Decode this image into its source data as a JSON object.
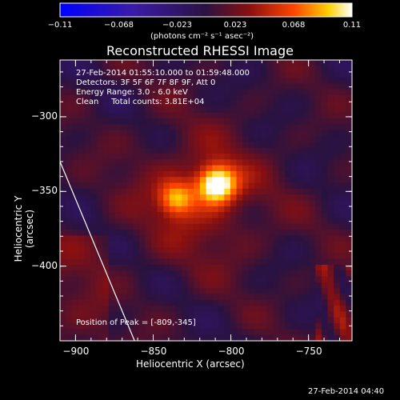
{
  "chart_data": {
    "type": "heatmap",
    "title": "Reconstructed RHESSI Image",
    "info_lines": [
      "27-Feb-2014 01:55:10.000 to 01:59:48.000",
      "Detectors: 3F 5F 6F 7F 8F 9F, Att 0",
      "Energy Range: 3.0 - 6.0 keV",
      "Clean     Total counts: 3.81E+04"
    ],
    "peak_label": "Position of Peak = [-809,-345]",
    "xlabel": "Heliocentric X (arcsec)",
    "ylabel": "Heliocentric Y (arcsec)",
    "xlim": [
      -910,
      -722
    ],
    "ylim": [
      -450,
      -262
    ],
    "x_ticks": [
      "-900",
      "-850",
      "-800",
      "-750"
    ],
    "y_ticks": [
      "-300",
      "-350",
      "-400"
    ],
    "colorbar": {
      "range": [
        -0.11,
        0.11
      ],
      "tick_labels": [
        "-0.11",
        "-0.068",
        "-0.023",
        "0.023",
        "0.068",
        "0.11"
      ],
      "unit": "(photons cm⁻² s⁻¹ asec⁻²)"
    },
    "sources": [
      {
        "x": -809,
        "y": -345,
        "peak": 0.11
      },
      {
        "x": -835,
        "y": -355,
        "peak": 0.065
      }
    ],
    "limb_line": [
      [
        -910,
        -330
      ],
      [
        -862,
        -450
      ]
    ]
  },
  "timestamp": "27-Feb-2014 04:40",
  "colors": {
    "background": "#000000",
    "axes": "#ffffff"
  }
}
